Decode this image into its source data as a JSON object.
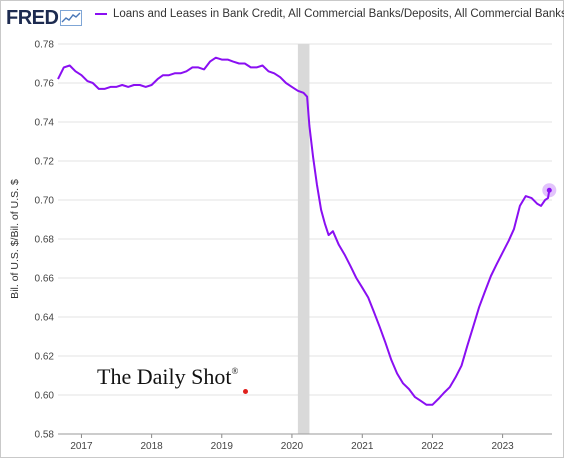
{
  "header": {
    "logo_text": "FRED",
    "logo_icon": "line-chart-icon"
  },
  "legend": {
    "label": "Loans and Leases in Bank Credit, All Commercial Banks/Deposits, All Commercial Banks",
    "color": "#8a0ff2"
  },
  "watermark": {
    "text": "The Daily Shot",
    "mark": "®",
    "dot_color": "#e0201c"
  },
  "chart_data": {
    "type": "line",
    "title": "",
    "xlabel": "",
    "ylabel": "Bil. of U.S. $/Bil. of U.S. $",
    "ylim": [
      0.58,
      0.78
    ],
    "xlim": [
      "2016-09-01",
      "2023-09-15"
    ],
    "grid": true,
    "x_ticks": [
      "2017",
      "2018",
      "2019",
      "2020",
      "2021",
      "2022",
      "2023"
    ],
    "y_ticks": [
      "0.58",
      "0.60",
      "0.62",
      "0.64",
      "0.66",
      "0.68",
      "0.70",
      "0.72",
      "0.74",
      "0.76",
      "0.78"
    ],
    "recession_shading": [
      [
        "2020-02-01",
        "2020-04-01"
      ]
    ],
    "series": [
      {
        "name": "Loans and Leases in Bank Credit, All Commercial Banks/Deposits, All Commercial Banks",
        "color": "#8a0ff2",
        "points": [
          [
            "2016-09-01",
            0.762
          ],
          [
            "2016-10-01",
            0.768
          ],
          [
            "2016-11-01",
            0.769
          ],
          [
            "2016-12-01",
            0.766
          ],
          [
            "2017-01-01",
            0.764
          ],
          [
            "2017-02-01",
            0.761
          ],
          [
            "2017-03-01",
            0.76
          ],
          [
            "2017-04-01",
            0.757
          ],
          [
            "2017-05-01",
            0.757
          ],
          [
            "2017-06-01",
            0.758
          ],
          [
            "2017-07-01",
            0.758
          ],
          [
            "2017-08-01",
            0.759
          ],
          [
            "2017-09-01",
            0.758
          ],
          [
            "2017-10-01",
            0.759
          ],
          [
            "2017-11-01",
            0.759
          ],
          [
            "2017-12-01",
            0.758
          ],
          [
            "2018-01-01",
            0.759
          ],
          [
            "2018-02-01",
            0.762
          ],
          [
            "2018-03-01",
            0.764
          ],
          [
            "2018-04-01",
            0.764
          ],
          [
            "2018-05-01",
            0.765
          ],
          [
            "2018-06-01",
            0.765
          ],
          [
            "2018-07-01",
            0.766
          ],
          [
            "2018-08-01",
            0.768
          ],
          [
            "2018-09-01",
            0.768
          ],
          [
            "2018-10-01",
            0.767
          ],
          [
            "2018-11-01",
            0.771
          ],
          [
            "2018-12-01",
            0.773
          ],
          [
            "2019-01-01",
            0.772
          ],
          [
            "2019-02-01",
            0.772
          ],
          [
            "2019-03-01",
            0.771
          ],
          [
            "2019-04-01",
            0.77
          ],
          [
            "2019-05-01",
            0.77
          ],
          [
            "2019-06-01",
            0.768
          ],
          [
            "2019-07-01",
            0.768
          ],
          [
            "2019-08-01",
            0.769
          ],
          [
            "2019-09-01",
            0.766
          ],
          [
            "2019-10-01",
            0.765
          ],
          [
            "2019-11-01",
            0.763
          ],
          [
            "2019-12-01",
            0.76
          ],
          [
            "2020-01-01",
            0.758
          ],
          [
            "2020-02-01",
            0.756
          ],
          [
            "2020-03-01",
            0.755
          ],
          [
            "2020-03-20",
            0.753
          ],
          [
            "2020-04-01",
            0.738
          ],
          [
            "2020-04-20",
            0.722
          ],
          [
            "2020-05-10",
            0.708
          ],
          [
            "2020-06-01",
            0.695
          ],
          [
            "2020-06-20",
            0.688
          ],
          [
            "2020-07-10",
            0.682
          ],
          [
            "2020-08-01",
            0.684
          ],
          [
            "2020-09-01",
            0.677
          ],
          [
            "2020-10-01",
            0.672
          ],
          [
            "2020-11-01",
            0.666
          ],
          [
            "2020-12-01",
            0.66
          ],
          [
            "2021-01-01",
            0.655
          ],
          [
            "2021-02-01",
            0.65
          ],
          [
            "2021-03-01",
            0.643
          ],
          [
            "2021-04-01",
            0.635
          ],
          [
            "2021-05-01",
            0.627
          ],
          [
            "2021-06-01",
            0.618
          ],
          [
            "2021-07-01",
            0.611
          ],
          [
            "2021-08-01",
            0.606
          ],
          [
            "2021-09-01",
            0.603
          ],
          [
            "2021-10-01",
            0.599
          ],
          [
            "2021-11-01",
            0.597
          ],
          [
            "2021-12-01",
            0.595
          ],
          [
            "2022-01-01",
            0.595
          ],
          [
            "2022-02-01",
            0.598
          ],
          [
            "2022-03-01",
            0.601
          ],
          [
            "2022-04-01",
            0.604
          ],
          [
            "2022-05-01",
            0.609
          ],
          [
            "2022-06-01",
            0.615
          ],
          [
            "2022-07-01",
            0.625
          ],
          [
            "2022-08-01",
            0.635
          ],
          [
            "2022-09-01",
            0.645
          ],
          [
            "2022-10-01",
            0.653
          ],
          [
            "2022-11-01",
            0.661
          ],
          [
            "2022-12-01",
            0.667
          ],
          [
            "2023-01-01",
            0.673
          ],
          [
            "2023-02-01",
            0.679
          ],
          [
            "2023-03-01",
            0.685
          ],
          [
            "2023-04-01",
            0.697
          ],
          [
            "2023-05-01",
            0.702
          ],
          [
            "2023-06-01",
            0.701
          ],
          [
            "2023-07-01",
            0.698
          ],
          [
            "2023-07-20",
            0.697
          ],
          [
            "2023-08-10",
            0.7
          ],
          [
            "2023-08-25",
            0.701
          ],
          [
            "2023-09-01",
            0.705
          ]
        ]
      }
    ]
  }
}
